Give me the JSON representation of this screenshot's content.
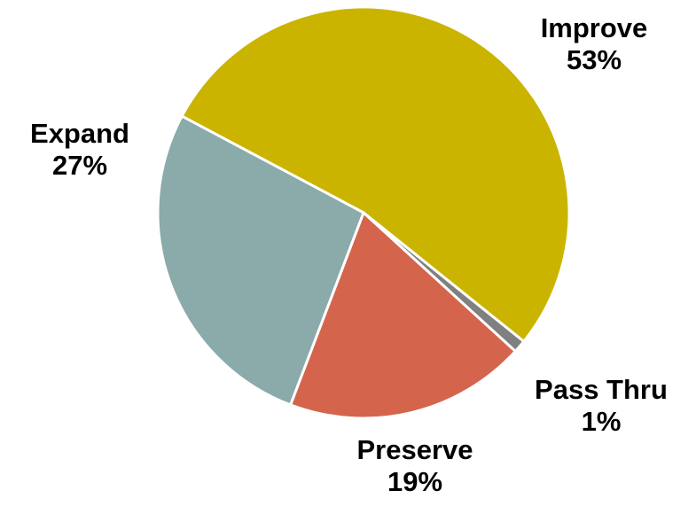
{
  "chart_data": {
    "type": "pie",
    "title": "",
    "slices": [
      {
        "name": "Improve",
        "value": 53,
        "label": "53%",
        "color": "#CBB400"
      },
      {
        "name": "Pass Thru",
        "value": 1,
        "label": "1%",
        "color": "#808080"
      },
      {
        "name": "Preserve",
        "value": 19,
        "label": "19%",
        "color": "#D4654C"
      },
      {
        "name": "Expand",
        "value": 27,
        "label": "27%",
        "color": "#8BAAAA"
      }
    ]
  }
}
